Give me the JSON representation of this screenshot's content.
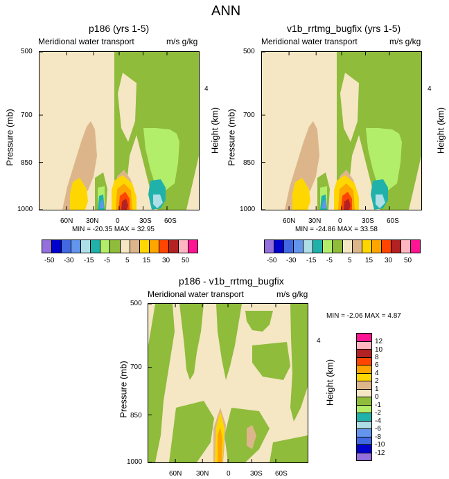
{
  "figure": {
    "title": "ANN"
  },
  "colors": {
    "palette": [
      "#9370db",
      "#0000cd",
      "#4169e1",
      "#6495ed",
      "#aedfe6",
      "#20b2aa",
      "#b3ee6b",
      "#8fbc3a",
      "#f5e6c4",
      "#dcb68a",
      "#ffd700",
      "#ffa500",
      "#ff4500",
      "#b22222",
      "#ffb6c1",
      "#ff1493"
    ],
    "diff_palette": [
      "#ff1493",
      "#ffb6c1",
      "#b22222",
      "#ff4500",
      "#ffa500",
      "#ffd700",
      "#dcb68a",
      "#f5e6c4",
      "#8fbc3a",
      "#b3ee6b",
      "#20b2aa",
      "#aedfe6",
      "#6495ed",
      "#4169e1",
      "#0000cd",
      "#9370db"
    ]
  },
  "chart_data": [
    {
      "type": "heatmap",
      "title": "p186 (yrs 1-5)",
      "left_string": "Meridional water transport",
      "right_string": "m/s g/kg",
      "ylabel": "Pressure (mb)",
      "ylabel_right": "Height (km)",
      "yticks": [
        "500",
        "700",
        "850",
        "1000"
      ],
      "right_ticks": [
        "4"
      ],
      "xticks": [
        "60N",
        "30N",
        "0",
        "30S",
        "60S"
      ],
      "stats": "MIN = -20.35   MAX =  32.95",
      "colorbar_labels": [
        "-50",
        "-30",
        "-15",
        "-5",
        "5",
        "15",
        "30",
        "50"
      ]
    },
    {
      "type": "heatmap",
      "title": "v1b_rrtmg_bugfix (yrs 1-5)",
      "left_string": "Meridional water transport",
      "right_string": "m/s g/kg",
      "ylabel": "Pressure (mb)",
      "ylabel_right": "Height (km)",
      "yticks": [
        "500",
        "700",
        "850",
        "1000"
      ],
      "right_ticks": [
        "4"
      ],
      "xticks": [
        "60N",
        "30N",
        "0",
        "30S",
        "60S"
      ],
      "stats": "MIN = -24.86   MAX =  33.58",
      "colorbar_labels": [
        "-50",
        "-30",
        "-15",
        "-5",
        "5",
        "15",
        "30",
        "50"
      ]
    },
    {
      "type": "heatmap",
      "title": "p186 - v1b_rrtmg_bugfix",
      "left_string": "Meridional water transport",
      "right_string": "m/s g/kg",
      "ylabel": "Pressure (mb)",
      "ylabel_right": "Height (km)",
      "yticks": [
        "500",
        "700",
        "850",
        "1000"
      ],
      "right_ticks": [
        "4"
      ],
      "xticks": [
        "60N",
        "30N",
        "0",
        "30S",
        "60S"
      ],
      "stats": "MIN =  -2.06   MAX =   4.87",
      "colorbar_labels": [
        "12",
        "10",
        "8",
        "6",
        "4",
        "2",
        "1",
        "0",
        "-1",
        "-2",
        "-4",
        "-6",
        "-8",
        "-10",
        "-12"
      ]
    }
  ]
}
